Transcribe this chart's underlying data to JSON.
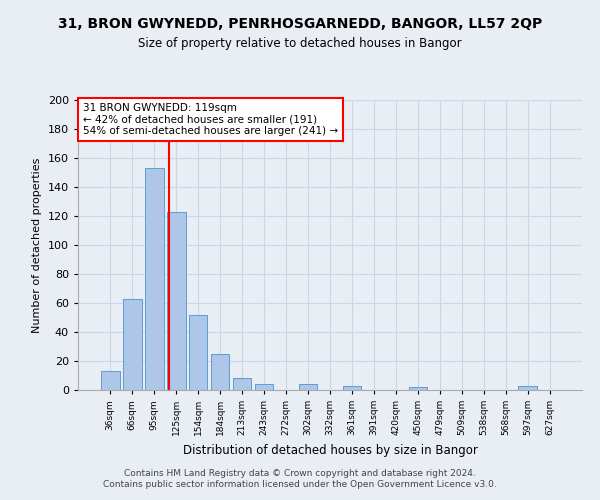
{
  "title1": "31, BRON GWYNEDD, PENRHOSGARNEDD, BANGOR, LL57 2QP",
  "title2": "Size of property relative to detached houses in Bangor",
  "xlabel": "Distribution of detached houses by size in Bangor",
  "ylabel": "Number of detached properties",
  "categories": [
    "36sqm",
    "66sqm",
    "95sqm",
    "125sqm",
    "154sqm",
    "184sqm",
    "213sqm",
    "243sqm",
    "272sqm",
    "302sqm",
    "332sqm",
    "361sqm",
    "391sqm",
    "420sqm",
    "450sqm",
    "479sqm",
    "509sqm",
    "538sqm",
    "568sqm",
    "597sqm",
    "627sqm"
  ],
  "values": [
    13,
    63,
    153,
    123,
    52,
    25,
    8,
    4,
    0,
    4,
    0,
    3,
    0,
    0,
    2,
    0,
    0,
    0,
    0,
    3,
    0
  ],
  "bar_color": "#aec6e8",
  "bar_edge_color": "#5a9fd4",
  "grid_color": "#c8d8e8",
  "annotation_line1": "31 BRON GWYNEDD: 119sqm",
  "annotation_line2": "← 42% of detached houses are smaller (191)",
  "annotation_line3": "54% of semi-detached houses are larger (241) →",
  "annotation_box_color": "white",
  "annotation_box_edge": "red",
  "vline_x": 2.67,
  "vline_color": "red",
  "ylim": [
    0,
    200
  ],
  "yticks": [
    0,
    20,
    40,
    60,
    80,
    100,
    120,
    140,
    160,
    180,
    200
  ],
  "footer1": "Contains HM Land Registry data © Crown copyright and database right 2024.",
  "footer2": "Contains public sector information licensed under the Open Government Licence v3.0.",
  "bg_color": "#e8eef4"
}
